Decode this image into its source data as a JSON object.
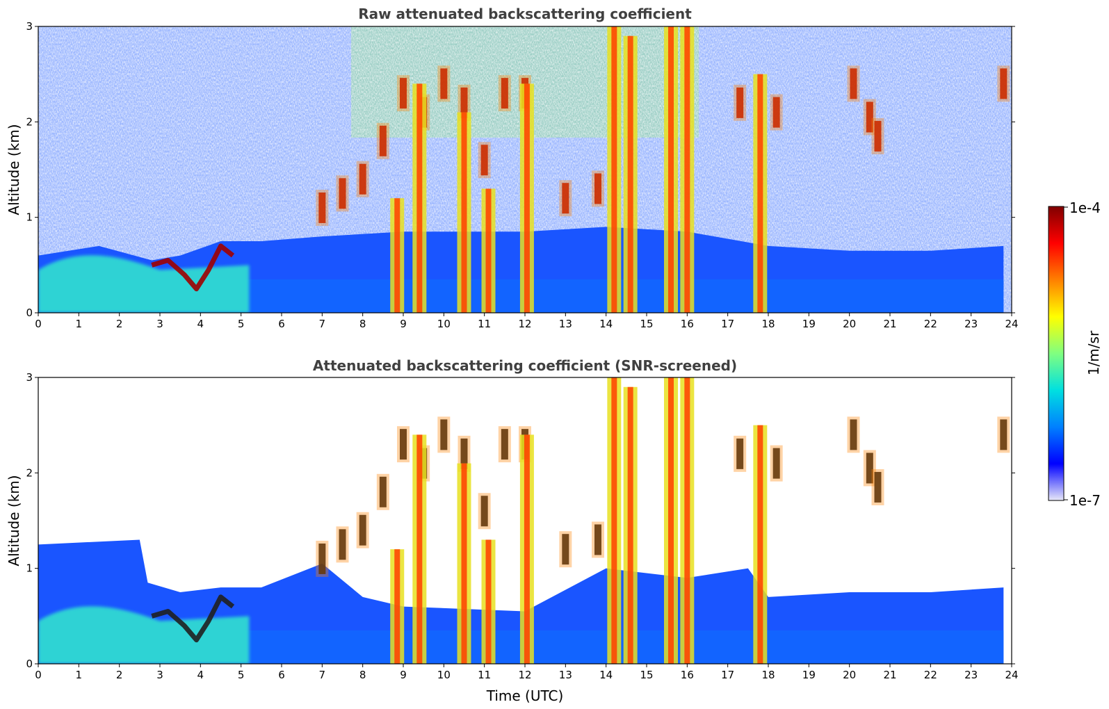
{
  "colormap": {
    "stops": [
      "#e8e8f8",
      "#0000ff",
      "#0080ff",
      "#00e0e0",
      "#80ff80",
      "#ffff00",
      "#ff8000",
      "#ff0000",
      "#800000"
    ],
    "min_label": "1e-7",
    "max_label": "1e-4",
    "label": "1/m/sr"
  },
  "chart_data": [
    {
      "type": "heatmap",
      "title": "Raw attenuated backscattering coefficient",
      "xlabel": "",
      "ylabel": "Altitude (km)",
      "xlim": [
        0,
        24
      ],
      "ylim": [
        0,
        3
      ],
      "xticks": [
        "0",
        "1",
        "2",
        "3",
        "4",
        "5",
        "6",
        "7",
        "8",
        "9",
        "10",
        "11",
        "12",
        "13",
        "14",
        "15",
        "16",
        "17",
        "18",
        "19",
        "20",
        "21",
        "22",
        "23",
        "24"
      ],
      "yticks": [
        "0",
        "1",
        "2",
        "3"
      ],
      "boundary_layer_top_km": [
        [
          0,
          0.6
        ],
        [
          1.5,
          0.7
        ],
        [
          2.8,
          0.55
        ],
        [
          3.5,
          0.6
        ],
        [
          4.5,
          0.75
        ],
        [
          5.5,
          0.75
        ],
        [
          7,
          0.8
        ],
        [
          9,
          0.85
        ],
        [
          12,
          0.85
        ],
        [
          14,
          0.9
        ],
        [
          16,
          0.85
        ],
        [
          18,
          0.7
        ],
        [
          20,
          0.65
        ],
        [
          22,
          0.65
        ],
        [
          23.8,
          0.7
        ]
      ],
      "vertical_plumes": [
        {
          "x": 8.85,
          "top_km": 1.2
        },
        {
          "x": 9.4,
          "top_km": 2.4
        },
        {
          "x": 10.5,
          "top_km": 2.1
        },
        {
          "x": 11.1,
          "top_km": 1.3
        },
        {
          "x": 12.05,
          "top_km": 2.4
        },
        {
          "x": 14.2,
          "top_km": 3.0
        },
        {
          "x": 14.6,
          "top_km": 2.9
        },
        {
          "x": 15.6,
          "top_km": 3.0
        },
        {
          "x": 16.0,
          "top_km": 3.0
        },
        {
          "x": 17.8,
          "top_km": 2.5
        }
      ],
      "cloud_layer": [
        [
          7,
          1.1
        ],
        [
          7.5,
          1.25
        ],
        [
          8,
          1.4
        ],
        [
          8.5,
          1.8
        ],
        [
          9,
          2.3
        ],
        [
          9.5,
          2.1
        ],
        [
          10,
          2.4
        ],
        [
          10.5,
          2.2
        ],
        [
          11,
          1.6
        ],
        [
          11.5,
          2.3
        ],
        [
          12,
          2.3
        ],
        [
          13,
          1.2
        ],
        [
          13.8,
          1.3
        ],
        [
          17.3,
          2.2
        ],
        [
          18.2,
          2.1
        ],
        [
          20.1,
          2.4
        ],
        [
          20.5,
          2.05
        ],
        [
          20.7,
          1.85
        ],
        [
          23.8,
          2.4
        ]
      ],
      "aerosol_layer_0_4h": [
        [
          2.8,
          0.5
        ],
        [
          3.2,
          0.55
        ],
        [
          3.6,
          0.4
        ],
        [
          3.9,
          0.25
        ],
        [
          4.2,
          0.45
        ],
        [
          4.5,
          0.7
        ],
        [
          4.8,
          0.6
        ]
      ]
    },
    {
      "type": "heatmap",
      "title": "Attenuated backscattering coefficient (SNR-screened)",
      "xlabel": "Time (UTC)",
      "ylabel": "Altitude (km)",
      "xlim": [
        0,
        24
      ],
      "ylim": [
        0,
        3
      ],
      "xticks": [
        "0",
        "1",
        "2",
        "3",
        "4",
        "5",
        "6",
        "7",
        "8",
        "9",
        "10",
        "11",
        "12",
        "13",
        "14",
        "15",
        "16",
        "17",
        "18",
        "19",
        "20",
        "21",
        "22",
        "23",
        "24"
      ],
      "yticks": [
        "0",
        "1",
        "2",
        "3"
      ],
      "screened_top_km": [
        [
          0,
          1.25
        ],
        [
          2.5,
          1.3
        ],
        [
          2.7,
          0.85
        ],
        [
          3.5,
          0.75
        ],
        [
          4.5,
          0.8
        ],
        [
          5.5,
          0.8
        ],
        [
          7,
          1.05
        ],
        [
          8,
          0.7
        ],
        [
          9,
          0.6
        ],
        [
          12,
          0.55
        ],
        [
          14,
          1.0
        ],
        [
          16,
          0.9
        ],
        [
          17.5,
          1.0
        ],
        [
          18,
          0.7
        ],
        [
          20,
          0.75
        ],
        [
          22,
          0.75
        ],
        [
          23.8,
          0.8
        ]
      ]
    }
  ]
}
